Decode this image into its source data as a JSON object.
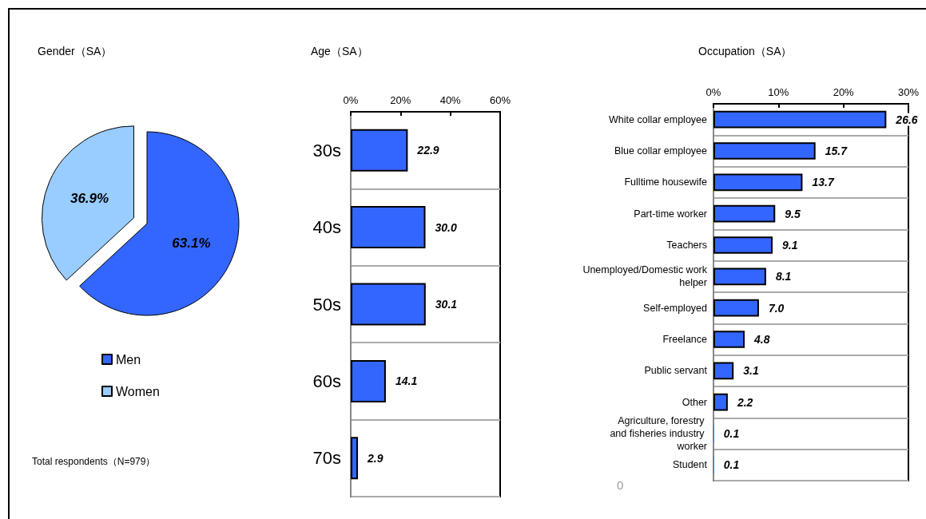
{
  "chart_data": [
    {
      "type": "pie",
      "title": "Gender（SA）",
      "categories": [
        "Men",
        "Women"
      ],
      "values": [
        63.1,
        36.9
      ],
      "colors": [
        "#3366ff",
        "#99ccff"
      ],
      "value_labels": [
        "63.1%",
        "36.9%"
      ],
      "legend": "bottom",
      "annotations": [
        "Total respondents（N=979）"
      ]
    },
    {
      "type": "bar",
      "title": "Age（SA）",
      "orientation": "horizontal",
      "categories": [
        "30s",
        "40s",
        "50s",
        "60s",
        "70s"
      ],
      "values": [
        22.9,
        30.0,
        30.1,
        14.1,
        2.9
      ],
      "color": "#3366ff",
      "value_labels": [
        "22.9",
        "30.0",
        "30.1",
        "14.1",
        "2.9"
      ],
      "xlim": [
        0,
        60
      ],
      "xticks": [
        {
          "value": 0,
          "label": "0%"
        },
        {
          "value": 20,
          "label": "20%"
        },
        {
          "value": 40,
          "label": "40%"
        },
        {
          "value": 60,
          "label": "60%"
        }
      ],
      "grid": "y"
    },
    {
      "type": "bar",
      "title": "Occupation（SA）",
      "orientation": "horizontal",
      "categories": [
        "White collar employee",
        "Blue collar employee",
        "Fulltime housewife",
        "Part-time worker",
        "Teachers",
        "Unemployed/Domestic work helper",
        "Self-employed",
        "Freelance",
        "Public servant",
        "Other",
        "Agriculture, forestry and fisheries industry worker",
        "Student"
      ],
      "values": [
        26.6,
        15.7,
        13.7,
        9.5,
        9.1,
        8.1,
        7.0,
        4.8,
        3.1,
        2.2,
        0.1,
        0.1
      ],
      "color": "#3366ff",
      "value_labels": [
        "26.6",
        "15.7",
        "13.7",
        "9.5",
        "9.1",
        "8.1",
        "7.0",
        "4.8",
        "3.1",
        "2.2",
        "0.1",
        "0.1"
      ],
      "xlim": [
        0,
        30
      ],
      "xticks": [
        {
          "value": 0,
          "label": "0%"
        },
        {
          "value": 10,
          "label": "10%"
        },
        {
          "value": 20,
          "label": "20%"
        },
        {
          "value": 30,
          "label": "30%"
        }
      ],
      "grid": "y",
      "annotations": [
        "0"
      ]
    }
  ]
}
